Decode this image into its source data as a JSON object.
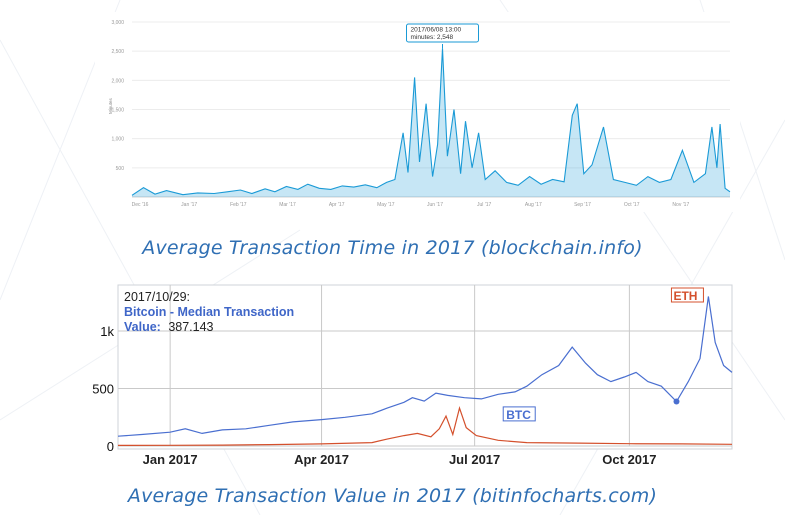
{
  "captions": {
    "top": "Average Transaction Time in 2017 (blockchain.info)",
    "bottom": "Average Transaction Value in 2017 (bitinfocharts.com)"
  },
  "colors": {
    "caption": "#2f6fb3",
    "time_series": "#1a9ad6",
    "btc": "#4a6fd0",
    "eth": "#d4502c"
  },
  "chart_data": [
    {
      "type": "area",
      "title": "",
      "xlabel": "",
      "ylabel": "Minutes",
      "ylim": [
        0,
        3000
      ],
      "y_ticks": [
        "3,000",
        "2,500",
        "2,000",
        "1,500",
        "1,000",
        "500"
      ],
      "x_ticks": [
        "Dec '16",
        "Jan '17",
        "Feb '17",
        "Mar '17",
        "Apr '17",
        "May '17",
        "Jun '17",
        "Jul '17",
        "Aug '17",
        "Sep '17",
        "Oct '17",
        "Nov '17"
      ],
      "grid": true,
      "tooltip": {
        "line1": "2017/06/08 13:00",
        "line2": "minutes: 2,548",
        "x": "2017-06-08",
        "y": 2548
      },
      "series": [
        {
          "name": "",
          "points": [
            [
              "2016-12-01",
              30
            ],
            [
              "2016-12-08",
              160
            ],
            [
              "2016-12-15",
              50
            ],
            [
              "2016-12-22",
              110
            ],
            [
              "2017-01-01",
              40
            ],
            [
              "2017-01-10",
              70
            ],
            [
              "2017-01-20",
              60
            ],
            [
              "2017-01-28",
              90
            ],
            [
              "2017-02-05",
              120
            ],
            [
              "2017-02-12",
              60
            ],
            [
              "2017-02-20",
              140
            ],
            [
              "2017-02-26",
              90
            ],
            [
              "2017-03-05",
              180
            ],
            [
              "2017-03-12",
              130
            ],
            [
              "2017-03-18",
              220
            ],
            [
              "2017-03-25",
              150
            ],
            [
              "2017-04-01",
              130
            ],
            [
              "2017-04-08",
              190
            ],
            [
              "2017-04-15",
              170
            ],
            [
              "2017-04-22",
              210
            ],
            [
              "2017-04-29",
              160
            ],
            [
              "2017-05-05",
              250
            ],
            [
              "2017-05-10",
              300
            ],
            [
              "2017-05-15",
              1100
            ],
            [
              "2017-05-18",
              420
            ],
            [
              "2017-05-22",
              2050
            ],
            [
              "2017-05-25",
              600
            ],
            [
              "2017-05-29",
              1600
            ],
            [
              "2017-06-02",
              350
            ],
            [
              "2017-06-05",
              900
            ],
            [
              "2017-06-08",
              2548
            ],
            [
              "2017-06-11",
              700
            ],
            [
              "2017-06-15",
              1500
            ],
            [
              "2017-06-19",
              400
            ],
            [
              "2017-06-22",
              1300
            ],
            [
              "2017-06-26",
              500
            ],
            [
              "2017-06-30",
              1100
            ],
            [
              "2017-07-04",
              300
            ],
            [
              "2017-07-10",
              450
            ],
            [
              "2017-07-17",
              250
            ],
            [
              "2017-07-24",
              200
            ],
            [
              "2017-07-31",
              350
            ],
            [
              "2017-08-07",
              220
            ],
            [
              "2017-08-14",
              300
            ],
            [
              "2017-08-21",
              260
            ],
            [
              "2017-08-26",
              1400
            ],
            [
              "2017-08-29",
              1600
            ],
            [
              "2017-09-02",
              400
            ],
            [
              "2017-09-07",
              550
            ],
            [
              "2017-09-14",
              1200
            ],
            [
              "2017-09-20",
              300
            ],
            [
              "2017-09-27",
              250
            ],
            [
              "2017-10-04",
              200
            ],
            [
              "2017-10-11",
              350
            ],
            [
              "2017-10-18",
              250
            ],
            [
              "2017-10-25",
              300
            ],
            [
              "2017-11-01",
              800
            ],
            [
              "2017-11-08",
              250
            ],
            [
              "2017-11-15",
              400
            ],
            [
              "2017-11-19",
              1200
            ],
            [
              "2017-11-22",
              500
            ],
            [
              "2017-11-24",
              1250
            ],
            [
              "2017-11-27",
              150
            ],
            [
              "2017-11-30",
              90
            ]
          ]
        }
      ]
    },
    {
      "type": "line",
      "title": "",
      "xlabel": "",
      "ylabel": "",
      "ylim": [
        0,
        1400
      ],
      "y_ticks": [
        "1k",
        "500",
        "0"
      ],
      "x_ticks": [
        "Jan 2017",
        "Apr 2017",
        "Jul 2017",
        "Oct 2017"
      ],
      "grid": true,
      "legend": "inline-labels",
      "info_box": {
        "date": "2017/10/29:",
        "series_label": "Bitcoin - Median Transaction",
        "value_label": "Value:",
        "value": "387.143"
      },
      "marker": {
        "x": "2017-10-29",
        "y": 387
      },
      "series": [
        {
          "name": "BTC",
          "points": [
            [
              "2016-12-01",
              85
            ],
            [
              "2016-12-15",
              100
            ],
            [
              "2017-01-01",
              120
            ],
            [
              "2017-01-10",
              150
            ],
            [
              "2017-01-20",
              110
            ],
            [
              "2017-02-01",
              140
            ],
            [
              "2017-02-15",
              150
            ],
            [
              "2017-03-01",
              180
            ],
            [
              "2017-03-15",
              210
            ],
            [
              "2017-04-01",
              230
            ],
            [
              "2017-04-15",
              250
            ],
            [
              "2017-05-01",
              280
            ],
            [
              "2017-05-10",
              330
            ],
            [
              "2017-05-20",
              380
            ],
            [
              "2017-05-25",
              420
            ],
            [
              "2017-06-01",
              390
            ],
            [
              "2017-06-08",
              460
            ],
            [
              "2017-06-15",
              440
            ],
            [
              "2017-06-25",
              420
            ],
            [
              "2017-07-05",
              410
            ],
            [
              "2017-07-15",
              450
            ],
            [
              "2017-07-25",
              470
            ],
            [
              "2017-08-01",
              520
            ],
            [
              "2017-08-10",
              620
            ],
            [
              "2017-08-20",
              700
            ],
            [
              "2017-08-28",
              860
            ],
            [
              "2017-09-05",
              720
            ],
            [
              "2017-09-12",
              620
            ],
            [
              "2017-09-20",
              560
            ],
            [
              "2017-09-28",
              600
            ],
            [
              "2017-10-05",
              640
            ],
            [
              "2017-10-12",
              560
            ],
            [
              "2017-10-20",
              520
            ],
            [
              "2017-10-29",
              387
            ],
            [
              "2017-11-05",
              560
            ],
            [
              "2017-11-12",
              760
            ],
            [
              "2017-11-17",
              1300
            ],
            [
              "2017-11-21",
              900
            ],
            [
              "2017-11-26",
              700
            ],
            [
              "2017-12-01",
              640
            ]
          ]
        },
        {
          "name": "ETH",
          "points": [
            [
              "2016-12-01",
              5
            ],
            [
              "2017-01-01",
              6
            ],
            [
              "2017-02-01",
              8
            ],
            [
              "2017-03-01",
              12
            ],
            [
              "2017-04-01",
              18
            ],
            [
              "2017-05-01",
              30
            ],
            [
              "2017-05-10",
              60
            ],
            [
              "2017-05-20",
              90
            ],
            [
              "2017-05-28",
              110
            ],
            [
              "2017-06-05",
              80
            ],
            [
              "2017-06-10",
              150
            ],
            [
              "2017-06-14",
              260
            ],
            [
              "2017-06-18",
              100
            ],
            [
              "2017-06-22",
              330
            ],
            [
              "2017-06-26",
              160
            ],
            [
              "2017-07-02",
              90
            ],
            [
              "2017-07-15",
              50
            ],
            [
              "2017-08-01",
              30
            ],
            [
              "2017-09-01",
              25
            ],
            [
              "2017-10-01",
              20
            ],
            [
              "2017-11-01",
              18
            ],
            [
              "2017-12-01",
              15
            ]
          ]
        }
      ]
    }
  ]
}
